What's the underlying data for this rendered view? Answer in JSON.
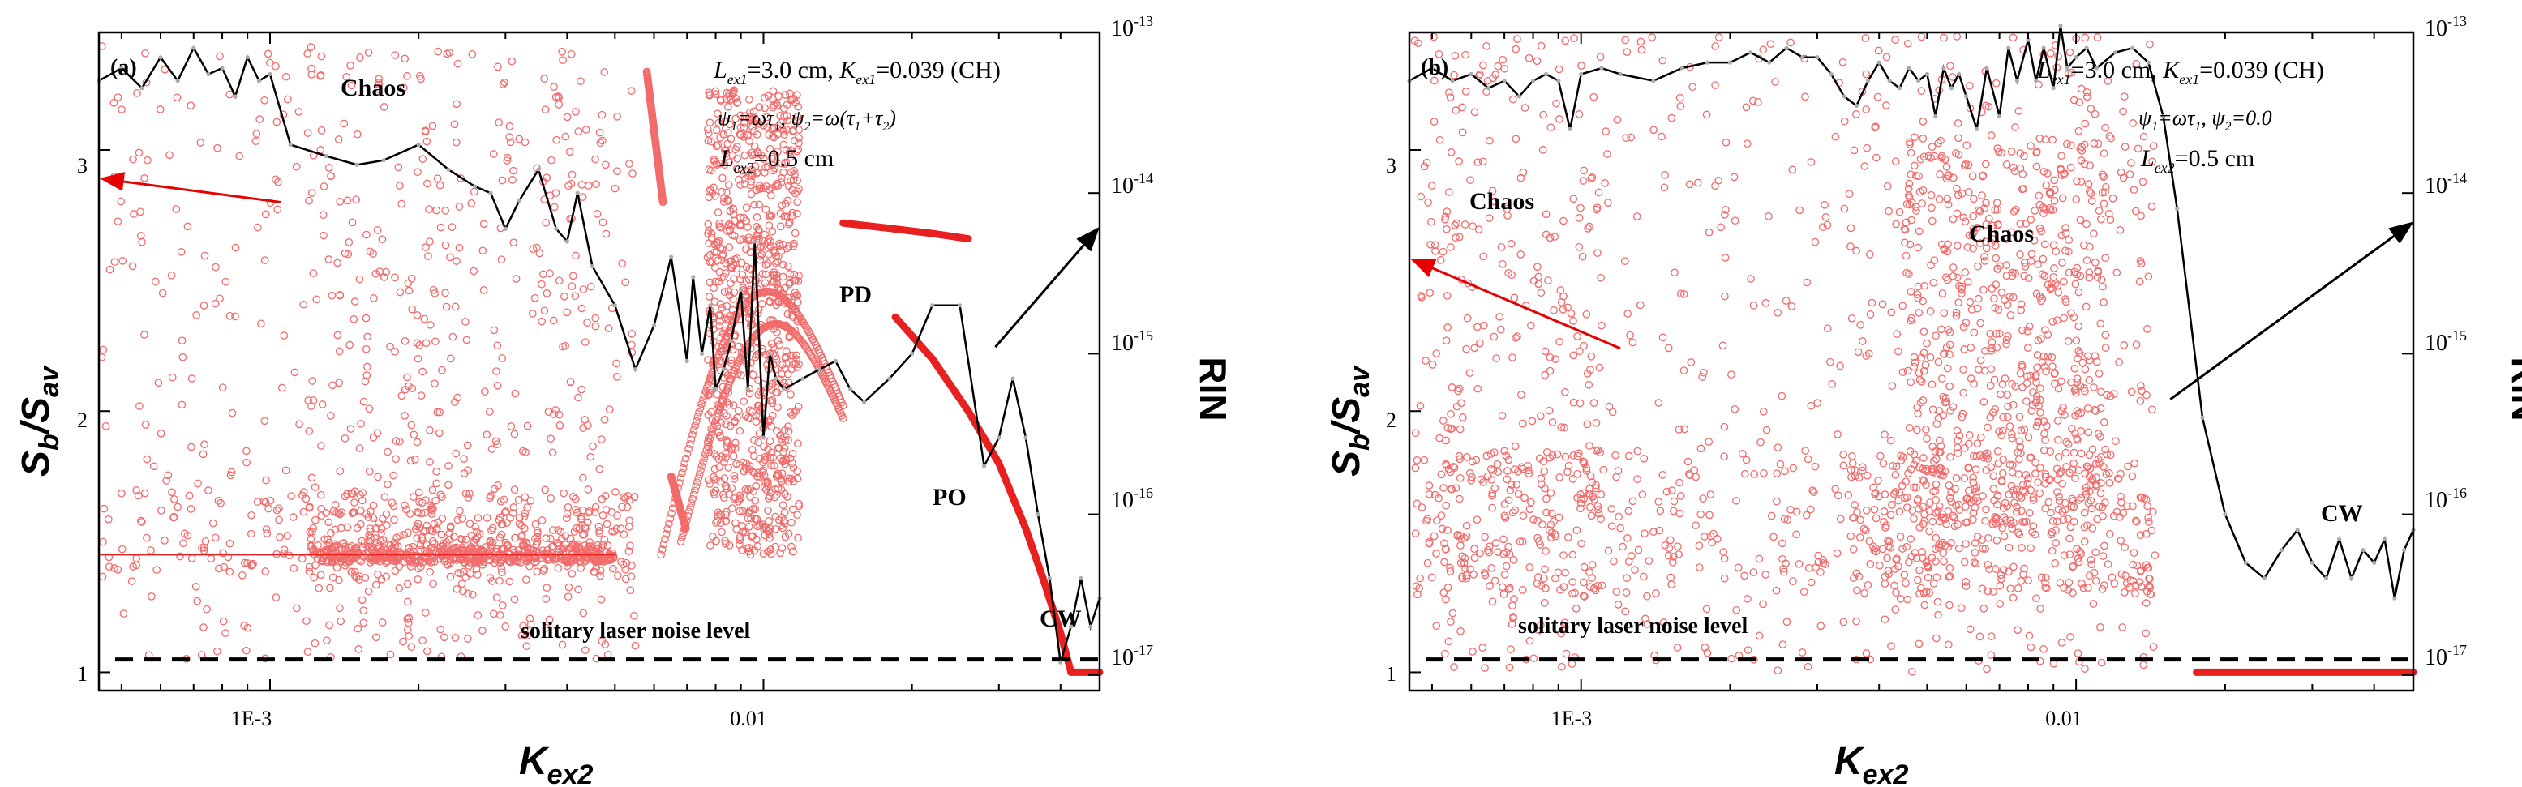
{
  "chart_data": [
    {
      "type": "scatter",
      "panel_label": "(a)",
      "xlabel": "Kex2",
      "xscale": "log",
      "xlim": [
        0.00045,
        0.048
      ],
      "x_ticks": [
        {
          "value": 0.001,
          "label": "1E-3"
        },
        {
          "value": 0.01,
          "label": "0.01"
        }
      ],
      "ylabel_left": "Sb/Sav",
      "ylim_left": [
        0.93,
        3.45
      ],
      "y_ticks_left": [
        1,
        2,
        3
      ],
      "ylabel_right": "RIN",
      "yscale_right": "log",
      "ylim_right": [
        8e-18,
        1e-13
      ],
      "y_ticks_right": [
        {
          "value": 1e-17,
          "base": "10",
          "exp": "-17"
        },
        {
          "value": 1e-16,
          "base": "10",
          "exp": "-16"
        },
        {
          "value": 1e-15,
          "base": "10",
          "exp": "-15"
        },
        {
          "value": 1e-14,
          "base": "10",
          "exp": "-14"
        },
        {
          "value": 1e-13,
          "base": "10",
          "exp": "-13"
        }
      ],
      "param_line1": "Lex1=3.0 cm, Kex1=0.039 (CH)",
      "param_line2": "ψ1=ωτ1, ψ2=ω(τ1+τ2)",
      "param_line3": "Lex2=0.5 cm",
      "region_labels": [
        "Chaos",
        "PD",
        "PO",
        "CW"
      ],
      "noise_label": "solitary laser noise level",
      "noise_level_rin": 1.25e-17,
      "rin_series": {
        "name": "RIN",
        "x": [
          0.00045,
          0.0005,
          0.00055,
          0.0006,
          0.00065,
          0.0007,
          0.00075,
          0.0008,
          0.00085,
          0.0009,
          0.00095,
          0.001,
          0.0011,
          0.0013,
          0.0015,
          0.0017,
          0.002,
          0.0023,
          0.0026,
          0.0028,
          0.003,
          0.0032,
          0.0035,
          0.0038,
          0.004,
          0.0042,
          0.0045,
          0.005,
          0.0055,
          0.006,
          0.0065,
          0.007,
          0.0072,
          0.0075,
          0.0078,
          0.008,
          0.0083,
          0.0086,
          0.009,
          0.0093,
          0.0096,
          0.01,
          0.0103,
          0.0106,
          0.011,
          0.012,
          0.013,
          0.014,
          0.015,
          0.016,
          0.018,
          0.02,
          0.022,
          0.025,
          0.028,
          0.03,
          0.032,
          0.034,
          0.036,
          0.038,
          0.04,
          0.042,
          0.044,
          0.046,
          0.048
        ],
        "y": [
          5e-14,
          6e-14,
          4.5e-14,
          7e-14,
          5e-14,
          8e-14,
          5.5e-14,
          6e-14,
          4e-14,
          7e-14,
          5e-14,
          5.5e-14,
          2e-14,
          1.7e-14,
          1.5e-14,
          1.6e-14,
          2e-14,
          1.4e-14,
          1.1e-14,
          1e-14,
          6e-15,
          9e-15,
          1.4e-14,
          6e-15,
          5e-15,
          1e-14,
          3.5e-15,
          2e-15,
          8e-16,
          1.5e-15,
          4e-15,
          9e-16,
          3e-15,
          1e-15,
          2e-15,
          6e-16,
          8e-16,
          1.2e-15,
          2.5e-15,
          6e-16,
          5e-15,
          3e-16,
          1e-15,
          7e-16,
          6e-16,
          7e-16,
          8e-16,
          9e-16,
          6e-16,
          5e-16,
          7e-16,
          1e-15,
          2e-15,
          2e-15,
          2e-16,
          3e-16,
          7e-16,
          3e-16,
          1e-16,
          4e-17,
          1.2e-17,
          2e-17,
          4e-17,
          2e-17,
          3e-17
        ]
      },
      "bifurcation_branches": [
        {
          "name": "period-1 solution",
          "x": [
            0.00045,
            0.005
          ],
          "y": [
            1.45,
            1.45
          ]
        },
        {
          "name": "PD branch",
          "x": [
            0.0145,
            0.018,
            0.022,
            0.026
          ],
          "y": [
            2.72,
            2.7,
            2.68,
            2.66
          ]
        },
        {
          "name": "PO branch",
          "x": [
            0.0185,
            0.022,
            0.026,
            0.03,
            0.034,
            0.037,
            0.04,
            0.042
          ],
          "y": [
            2.36,
            2.2,
            2.0,
            1.8,
            1.55,
            1.35,
            1.15,
            1.0
          ]
        },
        {
          "name": "CW",
          "x": [
            0.042,
            0.048
          ],
          "y": [
            1.0,
            1.0
          ]
        }
      ],
      "arrows": [
        {
          "axis": "left",
          "from": [
            0.00105,
            2.8
          ],
          "to": [
            0.00046,
            2.89
          ],
          "color": "#e60000"
        },
        {
          "axis": "right",
          "from": [
            0.0295,
            1.1e-15
          ],
          "to": [
            0.048,
            6e-15
          ],
          "color": "#000000"
        }
      ]
    },
    {
      "type": "scatter",
      "panel_label": "(b)",
      "xlabel": "Kex2",
      "xscale": "log",
      "xlim": [
        0.00045,
        0.048
      ],
      "x_ticks": [
        {
          "value": 0.001,
          "label": "1E-3"
        },
        {
          "value": 0.01,
          "label": "0.01"
        }
      ],
      "ylabel_left": "Sb/Sav",
      "ylim_left": [
        0.93,
        3.45
      ],
      "y_ticks_left": [
        1,
        2,
        3
      ],
      "ylabel_right": "RIN",
      "yscale_right": "log",
      "ylim_right": [
        8e-18,
        1e-13
      ],
      "y_ticks_right": [
        {
          "value": 1e-17,
          "base": "10",
          "exp": "-17"
        },
        {
          "value": 1e-16,
          "base": "10",
          "exp": "-16"
        },
        {
          "value": 1e-15,
          "base": "10",
          "exp": "-15"
        },
        {
          "value": 1e-14,
          "base": "10",
          "exp": "-14"
        },
        {
          "value": 1e-13,
          "base": "10",
          "exp": "-13"
        }
      ],
      "param_line1": "Lex1=3.0 cm, Kex1=0.039 (CH)",
      "param_line2": "ψ1=ωτ1, ψ2=0.0",
      "param_line3": "Lex2=0.5 cm",
      "region_labels": [
        "Chaos",
        "Chaos",
        "CW"
      ],
      "noise_label": "solitary laser noise level",
      "noise_level_rin": 1.25e-17,
      "rin_series": {
        "name": "RIN",
        "x": [
          0.00045,
          0.0005,
          0.00055,
          0.0006,
          0.00065,
          0.0007,
          0.00075,
          0.0008,
          0.00085,
          0.0009,
          0.00095,
          0.001,
          0.0011,
          0.0012,
          0.0014,
          0.0016,
          0.0018,
          0.002,
          0.0022,
          0.0024,
          0.0026,
          0.0028,
          0.003,
          0.0032,
          0.0034,
          0.0036,
          0.0038,
          0.004,
          0.0042,
          0.0044,
          0.0046,
          0.0048,
          0.005,
          0.0052,
          0.0054,
          0.0056,
          0.0058,
          0.006,
          0.0063,
          0.0066,
          0.007,
          0.0073,
          0.0076,
          0.008,
          0.0083,
          0.0086,
          0.009,
          0.0093,
          0.0096,
          0.01,
          0.0105,
          0.011,
          0.012,
          0.013,
          0.014,
          0.015,
          0.016,
          0.018,
          0.02,
          0.022,
          0.024,
          0.026,
          0.028,
          0.03,
          0.032,
          0.034,
          0.036,
          0.038,
          0.04,
          0.042,
          0.044,
          0.046,
          0.048
        ],
        "y": [
          5e-14,
          6e-14,
          5e-14,
          5.5e-14,
          4.5e-14,
          5e-14,
          4e-14,
          5e-14,
          5.5e-14,
          5e-14,
          2.5e-14,
          5.5e-14,
          6e-14,
          5.5e-14,
          5e-14,
          6e-14,
          6.5e-14,
          6.5e-14,
          7.5e-14,
          6.5e-14,
          8e-14,
          7e-14,
          7e-14,
          5.5e-14,
          4e-14,
          3.5e-14,
          5e-14,
          6.5e-14,
          5e-14,
          4.5e-14,
          6e-14,
          5e-14,
          5.5e-14,
          3e-14,
          6e-14,
          4.5e-14,
          5.5e-14,
          4e-14,
          2.5e-14,
          6e-14,
          3e-14,
          8e-14,
          5e-14,
          9e-14,
          5e-14,
          8e-14,
          4.5e-14,
          1.1e-13,
          6e-14,
          7e-14,
          8e-14,
          6e-14,
          7.5e-14,
          8e-14,
          6.5e-14,
          3e-14,
          8e-15,
          4e-16,
          1e-16,
          5e-17,
          4e-17,
          6e-17,
          8e-17,
          5e-17,
          4e-17,
          7e-17,
          4e-17,
          6e-17,
          5e-17,
          7e-17,
          3e-17,
          6e-17,
          8e-17
        ]
      },
      "bifurcation_branches": [
        {
          "name": "CW",
          "x": [
            0.0175,
            0.048
          ],
          "y": [
            1.0,
            1.0
          ]
        }
      ],
      "arrows": [
        {
          "axis": "left",
          "from": [
            0.0012,
            2.24
          ],
          "to": [
            0.00046,
            2.58
          ],
          "color": "#e60000"
        },
        {
          "axis": "right",
          "from": [
            0.0155,
            5.2e-16
          ],
          "to": [
            0.048,
            6.5e-15
          ],
          "color": "#000000"
        }
      ]
    }
  ]
}
